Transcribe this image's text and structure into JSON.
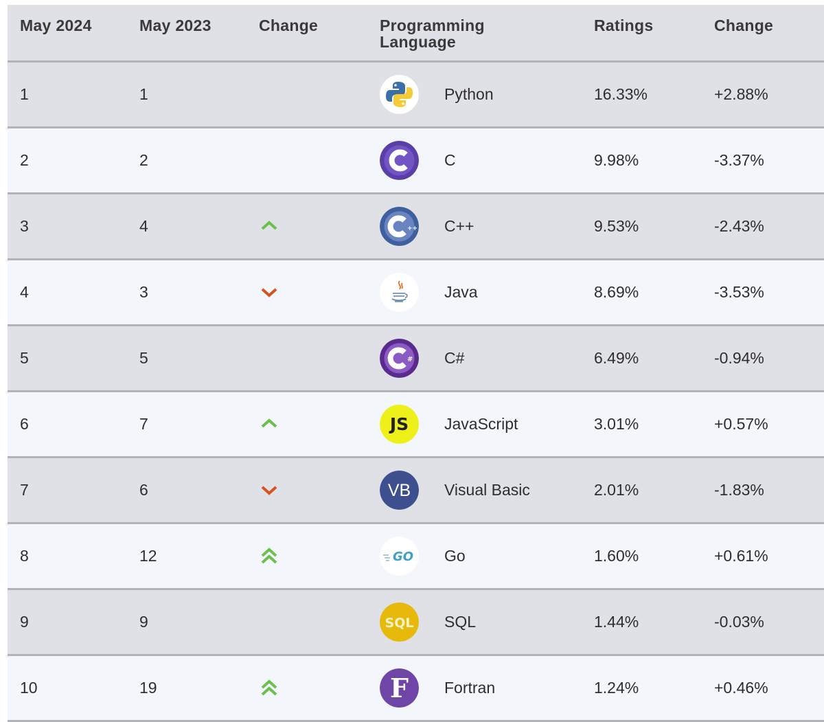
{
  "header": {
    "col_may2024": "May 2024",
    "col_may2023": "May 2023",
    "col_change": "Change",
    "col_language_l1": "Programming",
    "col_language_l2": "Language",
    "col_ratings": "Ratings",
    "col_ratings_change": "Change"
  },
  "rows": [
    {
      "rank_2024": "1",
      "rank_2023": "1",
      "trend": "none",
      "language": "Python",
      "icon": "python-logo-icon",
      "rating": "16.33%",
      "change": "+2.88%"
    },
    {
      "rank_2024": "2",
      "rank_2023": "2",
      "trend": "none",
      "language": "C",
      "icon": "c-logo-icon",
      "rating": "9.98%",
      "change": "-3.37%"
    },
    {
      "rank_2024": "3",
      "rank_2023": "4",
      "trend": "up",
      "language": "C++",
      "icon": "cpp-logo-icon",
      "rating": "9.53%",
      "change": "-2.43%"
    },
    {
      "rank_2024": "4",
      "rank_2023": "3",
      "trend": "down",
      "language": "Java",
      "icon": "java-logo-icon",
      "rating": "8.69%",
      "change": "-3.53%"
    },
    {
      "rank_2024": "5",
      "rank_2023": "5",
      "trend": "none",
      "language": "C#",
      "icon": "csharp-logo-icon",
      "rating": "6.49%",
      "change": "-0.94%"
    },
    {
      "rank_2024": "6",
      "rank_2023": "7",
      "trend": "up",
      "language": "JavaScript",
      "icon": "javascript-logo-icon",
      "rating": "3.01%",
      "change": "+0.57%"
    },
    {
      "rank_2024": "7",
      "rank_2023": "6",
      "trend": "down",
      "language": "Visual Basic",
      "icon": "visual-basic-logo-icon",
      "rating": "2.01%",
      "change": "-1.83%"
    },
    {
      "rank_2024": "8",
      "rank_2023": "12",
      "trend": "double-up",
      "language": "Go",
      "icon": "go-logo-icon",
      "rating": "1.60%",
      "change": "+0.61%"
    },
    {
      "rank_2024": "9",
      "rank_2023": "9",
      "trend": "none",
      "language": "SQL",
      "icon": "sql-logo-icon",
      "rating": "1.44%",
      "change": "-0.03%"
    },
    {
      "rank_2024": "10",
      "rank_2023": "19",
      "trend": "double-up",
      "language": "Fortran",
      "icon": "fortran-logo-icon",
      "rating": "1.24%",
      "change": "+0.46%"
    }
  ],
  "logos": {
    "js_text": "JS",
    "vb_text": "VB",
    "go_text": "GO",
    "sql_text": "SQL",
    "fortran_text": "F"
  },
  "colors": {
    "up_arrow": "#6cbf4a",
    "down_arrow": "#d4541d",
    "header_bg": "#dfe1e6",
    "row_alt_bg": "#f3f6fb",
    "divider": "#b0b3b8"
  }
}
